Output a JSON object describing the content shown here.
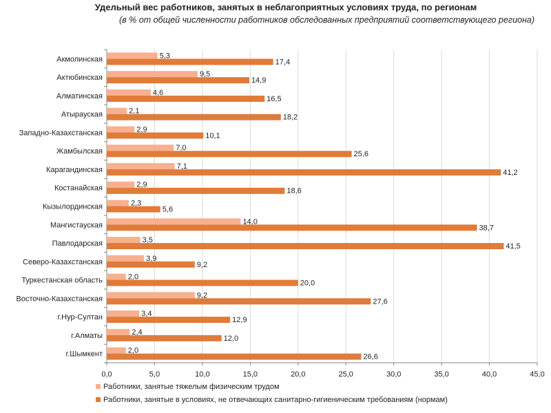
{
  "chart_data": {
    "type": "bar",
    "orientation": "horizontal",
    "title": "Удельный вес работников, занятых в неблагоприятных условиях труда, по регионам",
    "subtitle": "(в % от общей численности  работников обследованных предприятий соответствующего  региона)",
    "categories": [
      "Акмолинская",
      "Актюбинская",
      "Алматинская",
      "Атырауская",
      "Западно-Казахстанская",
      "Жамбылская",
      "Карагандинская",
      "Костанайская",
      "Кызылординская",
      "Мангистауская",
      "Павлодарская",
      "Северо-Казахстанская",
      "Туркестанская область",
      "Восточно-Казахстанская",
      "г.Нур-Султан",
      "г.Алматы",
      "г.Шымкент"
    ],
    "series": [
      {
        "name": "Работники, занятые тяжелым физическим трудом",
        "color": "#F9B08E",
        "values": [
          5.3,
          9.5,
          4.6,
          2.1,
          2.9,
          7.0,
          7.1,
          2.9,
          2.3,
          14.0,
          3.5,
          3.9,
          2.0,
          9.2,
          3.4,
          2.4,
          2.0
        ],
        "labels": [
          "5,3",
          "9,5",
          "4,6",
          "2,1",
          "2,9",
          "7,0",
          "7,1",
          "2,9",
          "2,3",
          "14,0",
          "3,5",
          "3,9",
          "2,0",
          "9,2",
          "3,4",
          "2,4",
          "2,0"
        ]
      },
      {
        "name": "Работники, занятые в условиях, не отвечающих санитарно-гигиеническим требованиям (нормам)",
        "color": "#E07B39",
        "values": [
          17.4,
          14.9,
          16.5,
          18.2,
          10.1,
          25.6,
          41.2,
          18.6,
          5.6,
          38.7,
          41.5,
          9.2,
          20.0,
          27.6,
          12.9,
          12.0,
          26.6
        ],
        "labels": [
          "17,4",
          "14,9",
          "16,5",
          "18,2",
          "10,1",
          "25,6",
          "41,2",
          "18,6",
          "5,6",
          "38,7",
          "41,5",
          "9,2",
          "20,0",
          "27,6",
          "12,9",
          "12,0",
          "26,6"
        ]
      }
    ],
    "xlim": [
      0,
      45
    ],
    "xticks": [
      0,
      5,
      10,
      15,
      20,
      25,
      30,
      35,
      40,
      45
    ],
    "xtick_labels": [
      "0,0",
      "5,0",
      "10,0",
      "15,0",
      "20,0",
      "25,0",
      "30,0",
      "35,0",
      "40,0",
      "45,0"
    ],
    "legend_position": "bottom",
    "grid": true
  }
}
